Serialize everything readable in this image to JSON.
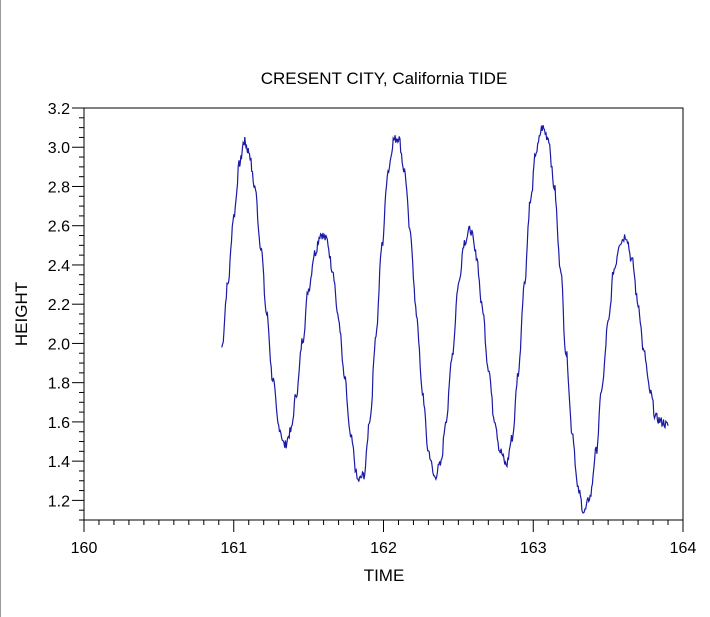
{
  "chart_data": {
    "type": "line",
    "title": "CRESENT CITY, California TIDE",
    "xlabel": "TIME",
    "ylabel": "HEIGHT",
    "xlim": [
      160,
      164
    ],
    "ylim": [
      1.1,
      3.2
    ],
    "x_ticks": [
      160,
      161,
      162,
      163,
      164
    ],
    "x_tick_labels": [
      "160",
      "161",
      "162",
      "163",
      "164"
    ],
    "y_ticks": [
      1.2,
      1.4,
      1.6,
      1.8,
      2.0,
      2.2,
      2.4,
      2.6,
      2.8,
      3.0,
      3.2
    ],
    "y_tick_labels": [
      "1.2",
      "1.4",
      "1.6",
      "1.8",
      "2.0",
      "2.2",
      "2.4",
      "2.6",
      "2.8",
      "3.0",
      "3.2"
    ],
    "grid": false,
    "legend": "none",
    "line_color": "#1a1aa6",
    "series": [
      {
        "x": [
          160.92,
          160.96,
          161.0,
          161.04,
          161.07,
          161.1,
          161.14,
          161.18,
          161.22,
          161.26,
          161.3,
          161.34,
          161.38,
          161.42,
          161.46,
          161.5,
          161.54,
          161.58,
          161.62,
          161.66,
          161.7,
          161.74,
          161.78,
          161.83,
          161.87,
          161.91,
          161.95,
          161.99,
          162.03,
          162.07,
          162.1,
          162.14,
          162.18,
          162.22,
          162.26,
          162.3,
          162.34,
          162.38,
          162.42,
          162.46,
          162.5,
          162.54,
          162.58,
          162.62,
          162.66,
          162.7,
          162.74,
          162.78,
          162.82,
          162.86,
          162.9,
          162.94,
          162.98,
          163.02,
          163.06,
          163.1,
          163.14,
          163.18,
          163.22,
          163.26,
          163.3,
          163.34,
          163.38,
          163.42,
          163.46,
          163.5,
          163.54,
          163.58,
          163.62,
          163.66,
          163.7,
          163.74,
          163.78,
          163.82,
          163.86,
          163.9
        ],
        "y": [
          1.98,
          2.3,
          2.65,
          2.92,
          3.03,
          2.98,
          2.8,
          2.5,
          2.15,
          1.82,
          1.58,
          1.48,
          1.55,
          1.75,
          2.02,
          2.28,
          2.46,
          2.56,
          2.53,
          2.38,
          2.12,
          1.82,
          1.52,
          1.3,
          1.33,
          1.62,
          2.05,
          2.5,
          2.88,
          3.04,
          3.05,
          2.88,
          2.55,
          2.15,
          1.75,
          1.45,
          1.32,
          1.38,
          1.62,
          1.95,
          2.3,
          2.52,
          2.58,
          2.45,
          2.18,
          1.88,
          1.62,
          1.45,
          1.38,
          1.52,
          1.85,
          2.3,
          2.72,
          2.98,
          3.1,
          3.05,
          2.8,
          2.4,
          1.95,
          1.55,
          1.25,
          1.14,
          1.22,
          1.45,
          1.78,
          2.1,
          2.38,
          2.52,
          2.55,
          2.42,
          2.2,
          1.95,
          1.75,
          1.62,
          1.6,
          1.58
        ]
      }
    ]
  }
}
